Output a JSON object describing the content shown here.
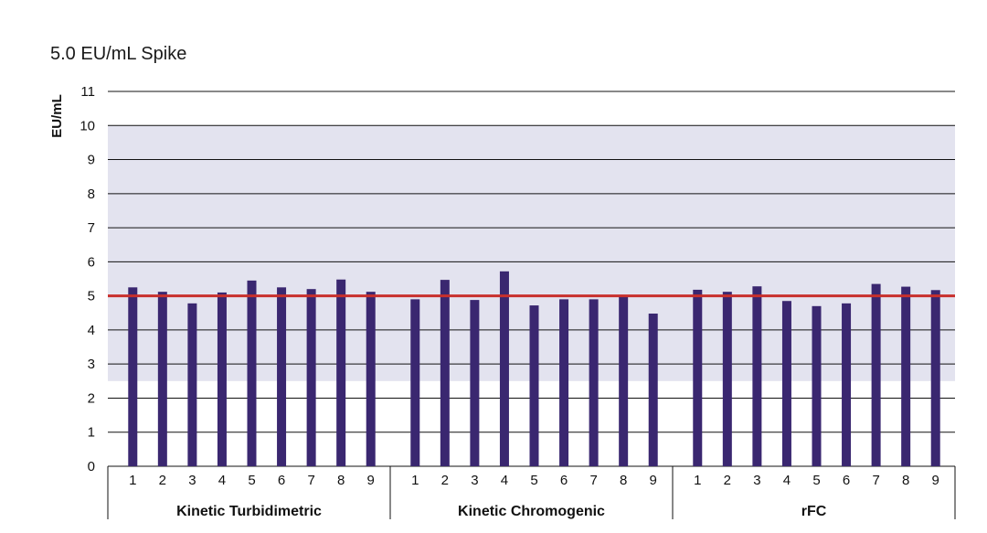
{
  "chart_data": {
    "type": "bar",
    "title": "5.0 EU/mL Spike",
    "ylabel": "EU/mL",
    "xlabel": "",
    "ylim": [
      0,
      11
    ],
    "yticks": [
      "0",
      "1",
      "2",
      "3",
      "4",
      "5",
      "6",
      "7",
      "8",
      "9",
      "10",
      "11"
    ],
    "grid": true,
    "acceptance_band": [
      2.5,
      10
    ],
    "reference_line": 5.0,
    "colors": {
      "bar": "#3a2770",
      "reference_line": "#c8302c",
      "band": "#e3e3ef",
      "grid": "#111111"
    },
    "groups": [
      {
        "name": "Kinetic Turbidimetric",
        "categories": [
          "1",
          "2",
          "3",
          "4",
          "5",
          "6",
          "7",
          "8",
          "9"
        ],
        "values": [
          5.25,
          5.12,
          4.78,
          5.1,
          5.45,
          5.25,
          5.2,
          5.48,
          5.12
        ]
      },
      {
        "name": "Kinetic Chromogenic",
        "categories": [
          "1",
          "2",
          "3",
          "4",
          "5",
          "6",
          "7",
          "8",
          "9"
        ],
        "values": [
          4.9,
          5.47,
          4.88,
          5.72,
          4.72,
          4.9,
          4.9,
          5.0,
          4.48
        ]
      },
      {
        "name": "rFC",
        "categories": [
          "1",
          "2",
          "3",
          "4",
          "5",
          "6",
          "7",
          "8",
          "9"
        ],
        "values": [
          5.18,
          5.12,
          5.28,
          4.85,
          4.7,
          4.78,
          5.35,
          5.27,
          5.17
        ]
      }
    ]
  }
}
